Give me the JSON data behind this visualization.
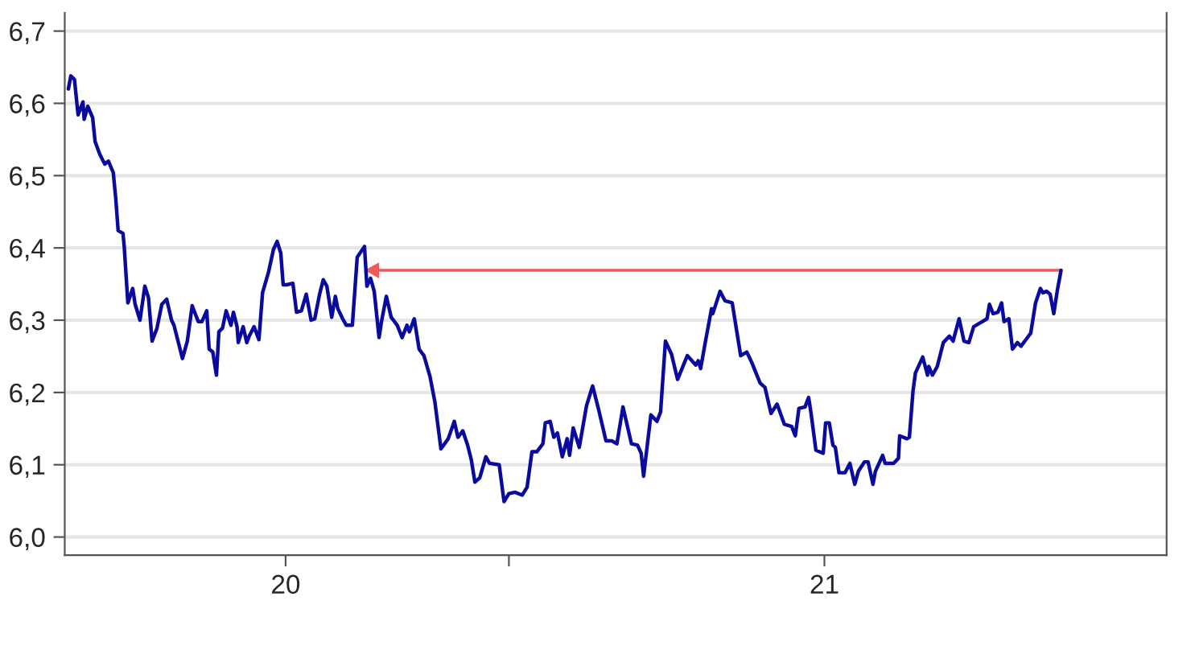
{
  "chart_data": {
    "type": "line",
    "x": [
      "2020-01-04",
      "2020-01-06",
      "2020-01-09",
      "2020-01-12",
      "2020-01-16",
      "2020-01-17",
      "2020-01-20",
      "2020-01-24",
      "2020-01-26",
      "2020-01-30",
      "2020-02-03",
      "2020-02-06",
      "2020-02-10",
      "2020-02-12",
      "2020-02-14",
      "2020-02-18",
      "2020-02-19",
      "2020-02-22",
      "2020-02-26",
      "2020-02-28",
      "2020-03-03",
      "2020-03-07",
      "2020-03-10",
      "2020-03-13",
      "2020-03-17",
      "2020-03-21",
      "2020-03-25",
      "2020-03-29",
      "2020-03-31",
      "2020-04-07",
      "2020-04-11",
      "2020-04-15",
      "2020-04-20",
      "2020-04-23",
      "2020-04-27",
      "2020-04-29",
      "2020-05-02",
      "2020-05-05",
      "2020-05-07",
      "2020-05-10",
      "2020-05-13",
      "2020-05-17",
      "2020-05-19",
      "2020-05-22",
      "2020-05-23",
      "2020-05-27",
      "2020-05-30",
      "2020-06-01",
      "2020-06-05",
      "2020-06-09",
      "2020-06-12",
      "2020-06-17",
      "2020-06-21",
      "2020-06-24",
      "2020-06-27",
      "2020-06-29",
      "2020-07-02",
      "2020-07-07",
      "2020-07-10",
      "2020-07-14",
      "2020-07-18",
      "2020-07-22",
      "2020-07-25",
      "2020-07-29",
      "2020-08-01",
      "2020-08-04",
      "2020-08-08",
      "2020-08-11",
      "2020-08-13",
      "2020-08-17",
      "2020-08-20",
      "2020-08-25",
      "2020-08-29",
      "2020-09-04",
      "2020-09-06",
      "2020-09-09",
      "2020-09-12",
      "2020-09-16",
      "2020-09-18",
      "2020-09-22",
      "2020-09-26",
      "2020-10-01",
      "2020-10-05",
      "2020-10-09",
      "2020-10-11",
      "2020-10-15",
      "2020-10-19",
      "2020-10-23",
      "2020-10-28",
      "2020-11-01",
      "2020-11-06",
      "2020-11-12",
      "2020-11-17",
      "2020-11-20",
      "2020-11-24",
      "2020-11-28",
      "2020-12-01",
      "2020-12-04",
      "2020-12-08",
      "2020-12-13",
      "2020-12-16",
      "2020-12-24",
      "2020-12-28",
      "2021-01-01",
      "2021-01-06",
      "2021-01-12",
      "2021-01-16",
      "2021-01-20",
      "2021-01-24",
      "2021-01-29",
      "2021-01-31",
      "2021-02-04",
      "2021-02-07",
      "2021-02-10",
      "2021-02-14",
      "2021-02-18",
      "2021-02-20",
      "2021-02-23",
      "2021-02-28",
      "2021-03-06",
      "2021-03-11",
      "2021-03-16",
      "2021-03-22",
      "2021-03-27",
      "2021-03-31",
      "2021-04-05",
      "2021-04-08",
      "2021-04-12",
      "2021-04-17",
      "2021-04-20",
      "2021-04-22",
      "2021-04-28",
      "2021-05-03",
      "2021-05-06",
      "2021-05-10",
      "2021-05-15",
      "2021-05-20",
      "2021-05-28",
      "2021-06-04",
      "2021-06-06",
      "2021-06-08",
      "2021-06-12",
      "2021-06-17",
      "2021-06-18",
      "2021-06-24",
      "2021-06-28",
      "2021-07-04",
      "2021-07-11",
      "2021-07-16",
      "2021-07-20",
      "2021-07-27",
      "2021-07-31",
      "2021-08-05",
      "2021-08-10",
      "2021-08-16",
      "2021-08-22",
      "2021-08-25",
      "2021-08-28",
      "2021-09-02",
      "2021-09-05",
      "2021-09-07",
      "2021-09-11",
      "2021-09-17",
      "2021-09-19",
      "2021-09-22",
      "2021-09-25",
      "2021-09-27",
      "2021-09-30",
      "2021-10-05",
      "2021-10-09",
      "2021-10-13",
      "2021-10-16",
      "2021-10-21",
      "2021-10-24",
      "2021-10-28",
      "2021-10-30",
      "2021-11-05",
      "2021-11-07",
      "2021-11-14",
      "2021-11-18",
      "2021-11-19",
      "2021-11-25",
      "2021-11-27",
      "2021-11-30",
      "2021-12-02",
      "2021-12-08",
      "2021-12-12",
      "2021-12-13",
      "2021-12-16",
      "2021-12-20",
      "2021-12-25",
      "2021-12-30",
      "2022-01-02",
      "2022-01-07",
      "2022-01-11",
      "2022-01-15",
      "2022-01-19",
      "2022-01-26",
      "2022-01-30",
      "2022-02-01",
      "2022-02-04",
      "2022-02-08",
      "2022-02-11",
      "2022-02-13",
      "2022-02-17",
      "2022-02-20",
      "2022-02-24",
      "2022-02-27",
      "2022-03-03",
      "2022-03-07",
      "2022-03-11",
      "2022-03-15",
      "2022-03-17",
      "2022-03-20",
      "2022-03-23",
      "2022-03-26",
      "2022-03-29",
      "2022-04-01"
    ],
    "series": [
      {
        "color": "#0a0a9e",
        "values": [
          6.62,
          6.638,
          6.633,
          6.584,
          6.602,
          6.578,
          6.596,
          6.58,
          6.547,
          6.529,
          6.516,
          6.52,
          6.504,
          6.469,
          6.424,
          6.42,
          6.402,
          6.324,
          6.344,
          6.322,
          6.3,
          6.347,
          6.331,
          6.271,
          6.289,
          6.322,
          6.329,
          6.3,
          6.293,
          6.247,
          6.271,
          6.32,
          6.298,
          6.298,
          6.313,
          6.26,
          6.256,
          6.224,
          6.284,
          6.289,
          6.313,
          6.293,
          6.311,
          6.291,
          6.269,
          6.291,
          6.269,
          6.278,
          6.291,
          6.273,
          6.338,
          6.367,
          6.398,
          6.409,
          6.393,
          6.349,
          6.349,
          6.351,
          6.311,
          6.313,
          6.336,
          6.3,
          6.302,
          6.336,
          6.356,
          6.347,
          6.304,
          6.333,
          6.316,
          6.302,
          6.293,
          6.293,
          6.387,
          6.402,
          6.347,
          6.358,
          6.34,
          6.276,
          6.298,
          6.333,
          6.304,
          6.293,
          6.276,
          6.293,
          6.284,
          6.302,
          6.26,
          6.251,
          6.222,
          6.187,
          6.122,
          6.136,
          6.16,
          6.138,
          6.147,
          6.127,
          6.107,
          6.076,
          6.082,
          6.111,
          6.102,
          6.1,
          6.049,
          6.06,
          6.062,
          6.058,
          6.069,
          6.118,
          6.118,
          6.129,
          6.158,
          6.16,
          6.138,
          6.144,
          6.111,
          6.136,
          6.113,
          6.151,
          6.124,
          6.182,
          6.209,
          6.176,
          6.133,
          6.133,
          6.129,
          6.18,
          6.158,
          6.129,
          6.127,
          6.116,
          6.084,
          6.169,
          6.16,
          6.173,
          6.271,
          6.253,
          6.218,
          6.251,
          6.238,
          6.244,
          6.233,
          6.271,
          6.316,
          6.309,
          6.34,
          6.327,
          6.324,
          6.251,
          6.256,
          6.242,
          6.213,
          6.207,
          6.171,
          6.184,
          6.156,
          6.153,
          6.14,
          6.178,
          6.18,
          6.193,
          6.171,
          6.12,
          6.116,
          6.158,
          6.158,
          6.127,
          6.124,
          6.089,
          6.089,
          6.102,
          6.073,
          6.091,
          6.104,
          6.104,
          6.073,
          6.091,
          6.113,
          6.102,
          6.102,
          6.109,
          6.14,
          6.136,
          6.138,
          6.202,
          6.227,
          6.249,
          6.224,
          6.236,
          6.224,
          6.236,
          6.269,
          6.278,
          6.271,
          6.302,
          6.271,
          6.269,
          6.291,
          6.298,
          6.302,
          6.322,
          6.309,
          6.311,
          6.324,
          6.298,
          6.302,
          6.26,
          6.269,
          6.264,
          6.273,
          6.282,
          6.324,
          6.344,
          6.338,
          6.34,
          6.336,
          6.309,
          6.342,
          6.369
        ]
      }
    ],
    "xlim": [
      "2020-01-01",
      "2022-06-27"
    ],
    "xticks": [
      {
        "value": "2020-07-01",
        "label": "20"
      },
      {
        "value": "2021-01-01",
        "label": null
      },
      {
        "value": "2021-09-18",
        "label": "21"
      }
    ],
    "ylim": [
      5.975,
      6.725
    ],
    "yticks": [
      {
        "value": 6.0,
        "label": "6,0"
      },
      {
        "value": 6.1,
        "label": "6,1"
      },
      {
        "value": 6.2,
        "label": "6,2"
      },
      {
        "value": 6.3,
        "label": "6,3"
      },
      {
        "value": 6.4,
        "label": "6,4"
      },
      {
        "value": 6.5,
        "label": "6,5"
      },
      {
        "value": 6.6,
        "label": "6,6"
      },
      {
        "value": 6.7,
        "label": "6,7"
      }
    ],
    "grid": "y",
    "legend": false,
    "marker": "none",
    "line_style": "solid"
  }
}
